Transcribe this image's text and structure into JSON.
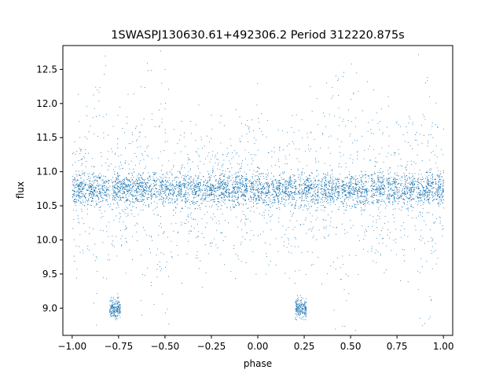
{
  "chart_data": {
    "type": "scatter",
    "title": "1SWASPJ130630.61+492306.2 Period 312220.875s",
    "xlabel": "phase",
    "ylabel": "flux",
    "xlim": [
      -1.05,
      1.05
    ],
    "ylim": [
      8.6,
      12.85
    ],
    "x_ticks": [
      -1.0,
      -0.75,
      -0.5,
      -0.25,
      0.0,
      0.25,
      0.5,
      0.75,
      1.0
    ],
    "x_tick_labels": [
      "−1.00",
      "−0.75",
      "−0.50",
      "−0.25",
      "0.00",
      "0.25",
      "0.50",
      "0.75",
      "1.00"
    ],
    "y_ticks": [
      9.0,
      9.5,
      10.0,
      10.5,
      11.0,
      11.5,
      12.0,
      12.5
    ],
    "y_tick_labels": [
      "9.0",
      "9.5",
      "10.0",
      "10.5",
      "11.0",
      "11.5",
      "12.0",
      "12.5"
    ],
    "grid": false,
    "marker_color": "#1f77b4",
    "series": [
      {
        "description_of_distribution": "dense band",
        "x_range": [
          -1.0,
          1.0
        ],
        "y_center": 10.75,
        "y_halfwidth": 0.25
      }
    ],
    "clusters": [
      {
        "x_center": -0.77,
        "x_halfwidth": 0.03,
        "y_center": 9.0,
        "y_halfwidth": 0.15
      },
      {
        "x_center": 0.23,
        "x_halfwidth": 0.03,
        "y_center": 9.0,
        "y_halfwidth": 0.15
      }
    ],
    "gaps": [
      -0.92,
      -0.79,
      -0.3,
      -0.05,
      0.07,
      0.21,
      0.33,
      0.6,
      0.69,
      0.85,
      0.95
    ]
  }
}
